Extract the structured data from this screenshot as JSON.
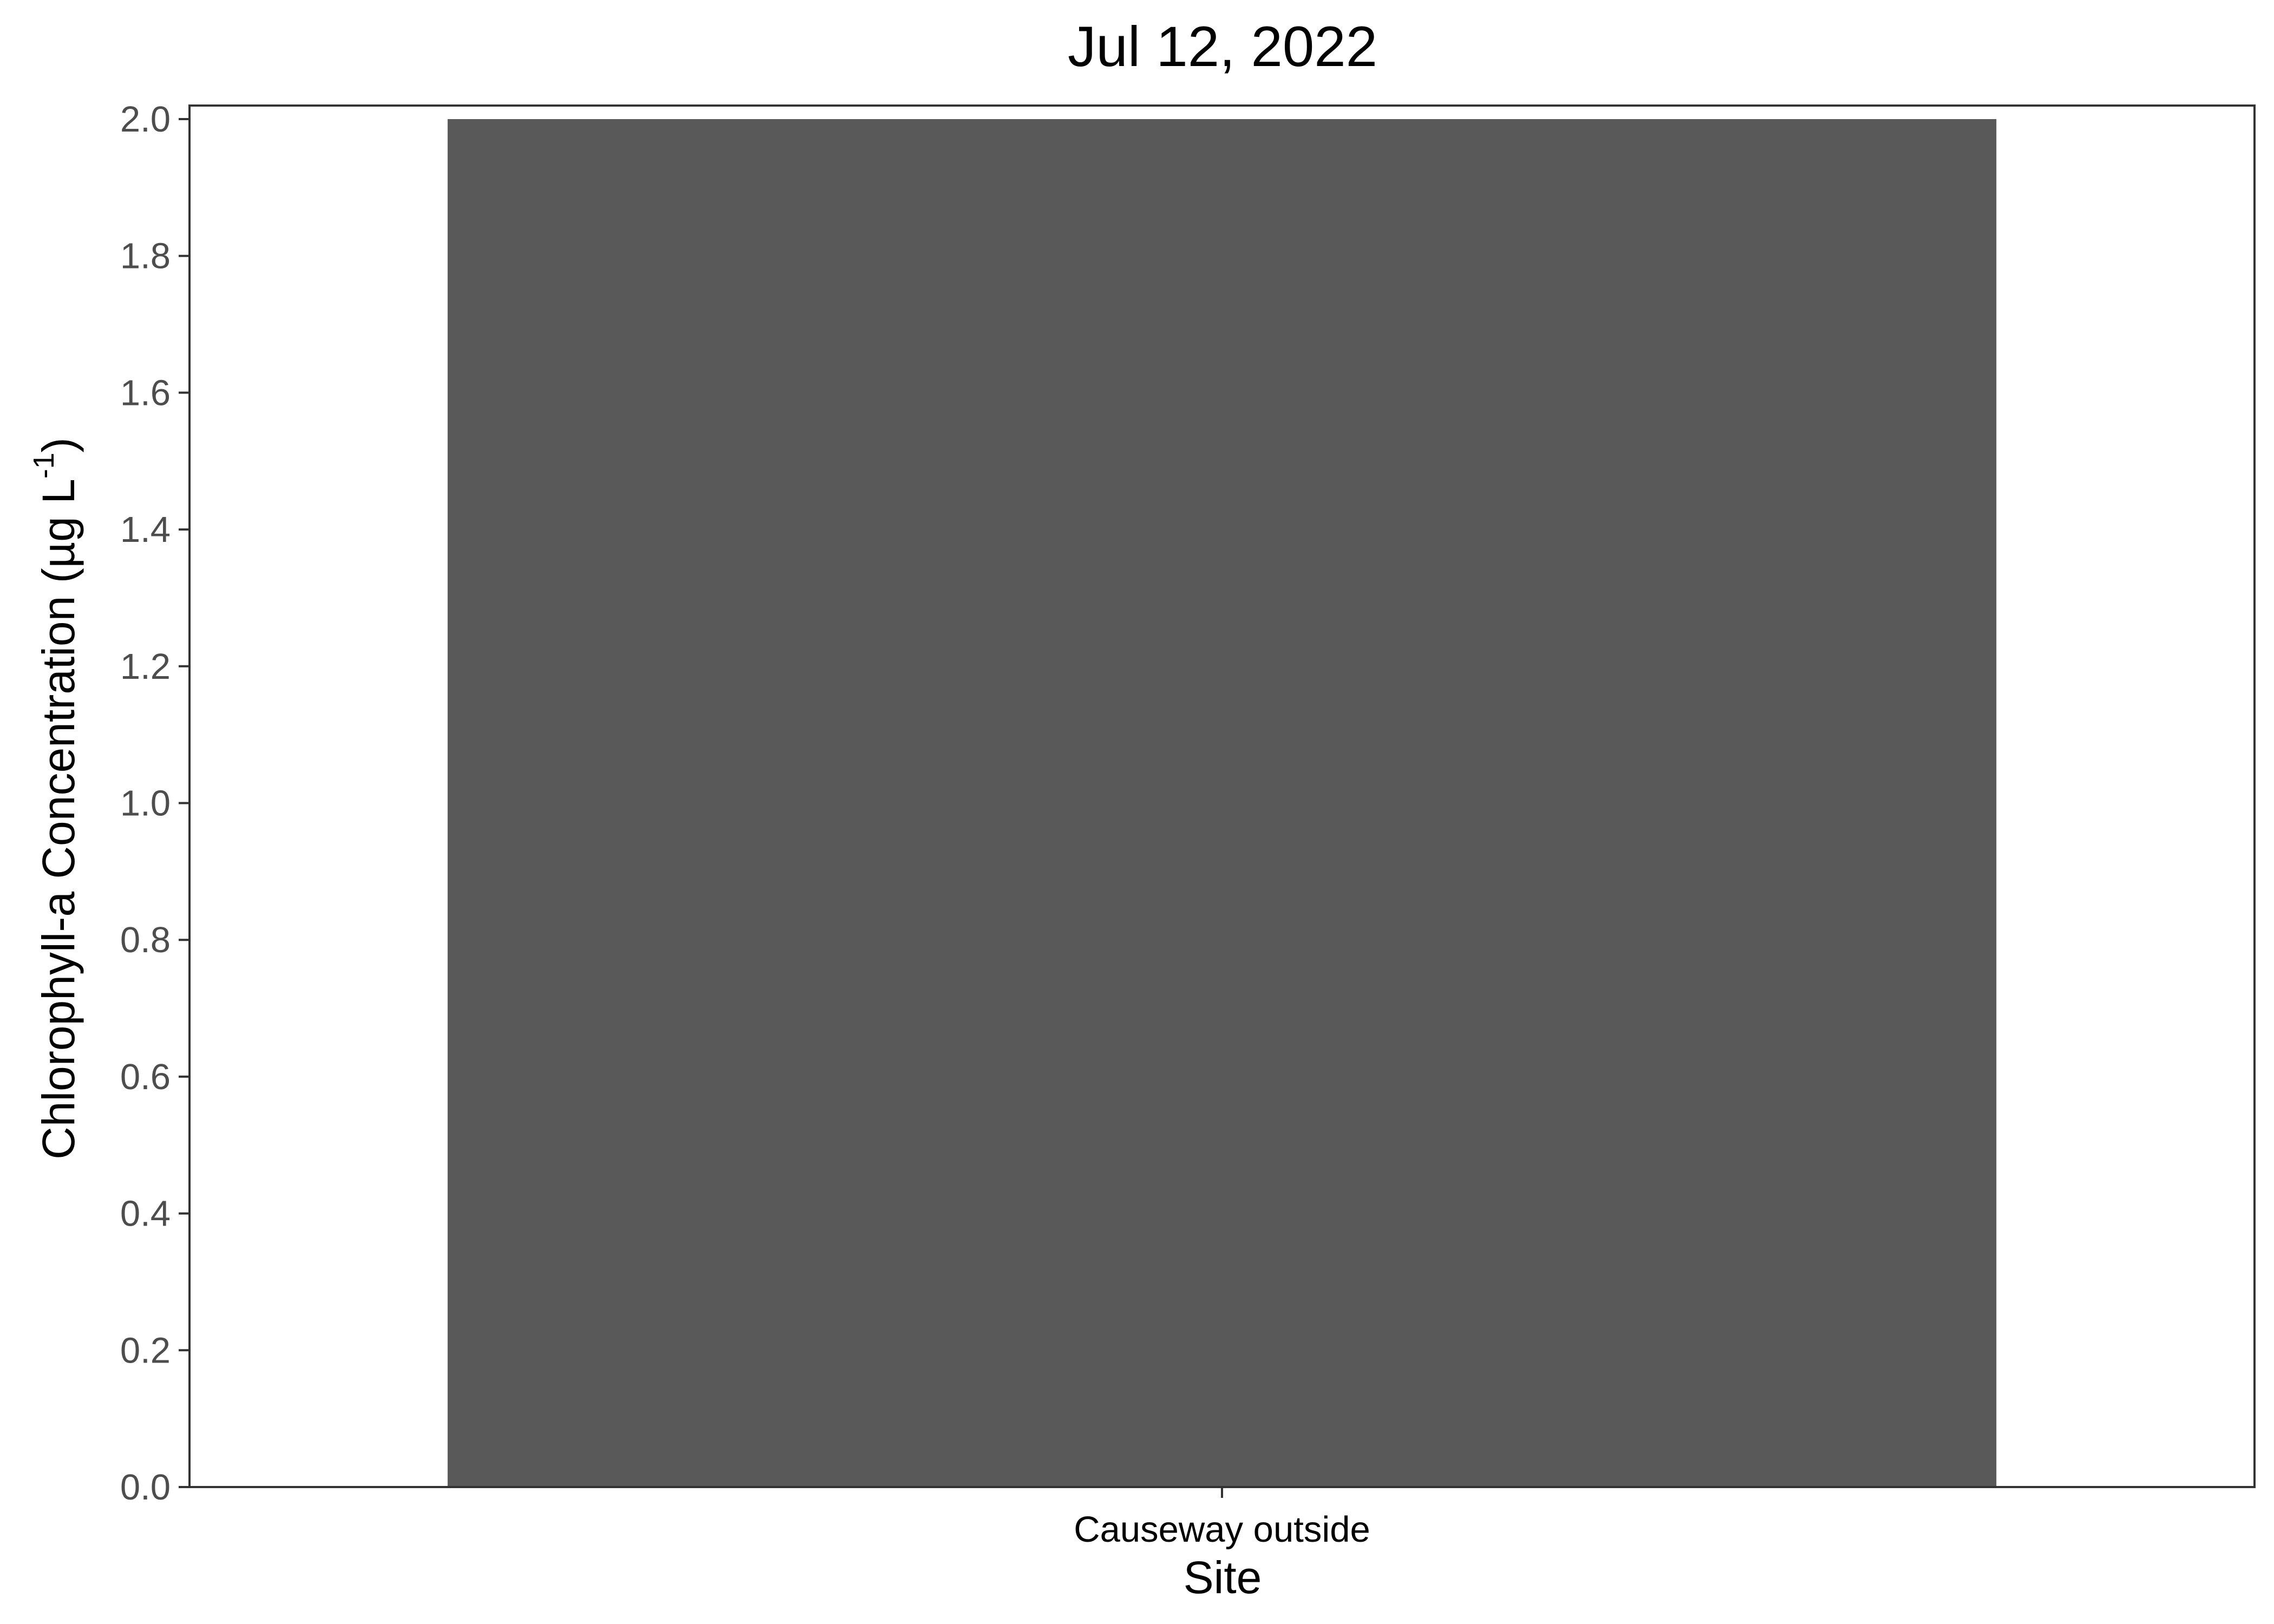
{
  "chart_data": {
    "type": "bar",
    "title": "Jul 12, 2022",
    "xlabel": "Site",
    "ylabel_main": "Chlorophyll-a Concentration (",
    "ylabel_unit": "µg L",
    "ylabel_exponent": "-1",
    "ylabel_close": ")",
    "categories": [
      "Causeway outside"
    ],
    "values": [
      2.0
    ],
    "ylim": [
      0,
      2.0
    ],
    "yticks": [
      "0.0",
      "0.2",
      "0.4",
      "0.6",
      "0.8",
      "1.0",
      "1.2",
      "1.4",
      "1.6",
      "1.8",
      "2.0"
    ],
    "grid": false,
    "legend": "none",
    "colors": {
      "bar": "#595959",
      "panel_border": "#333333",
      "tick": "#333333"
    }
  }
}
